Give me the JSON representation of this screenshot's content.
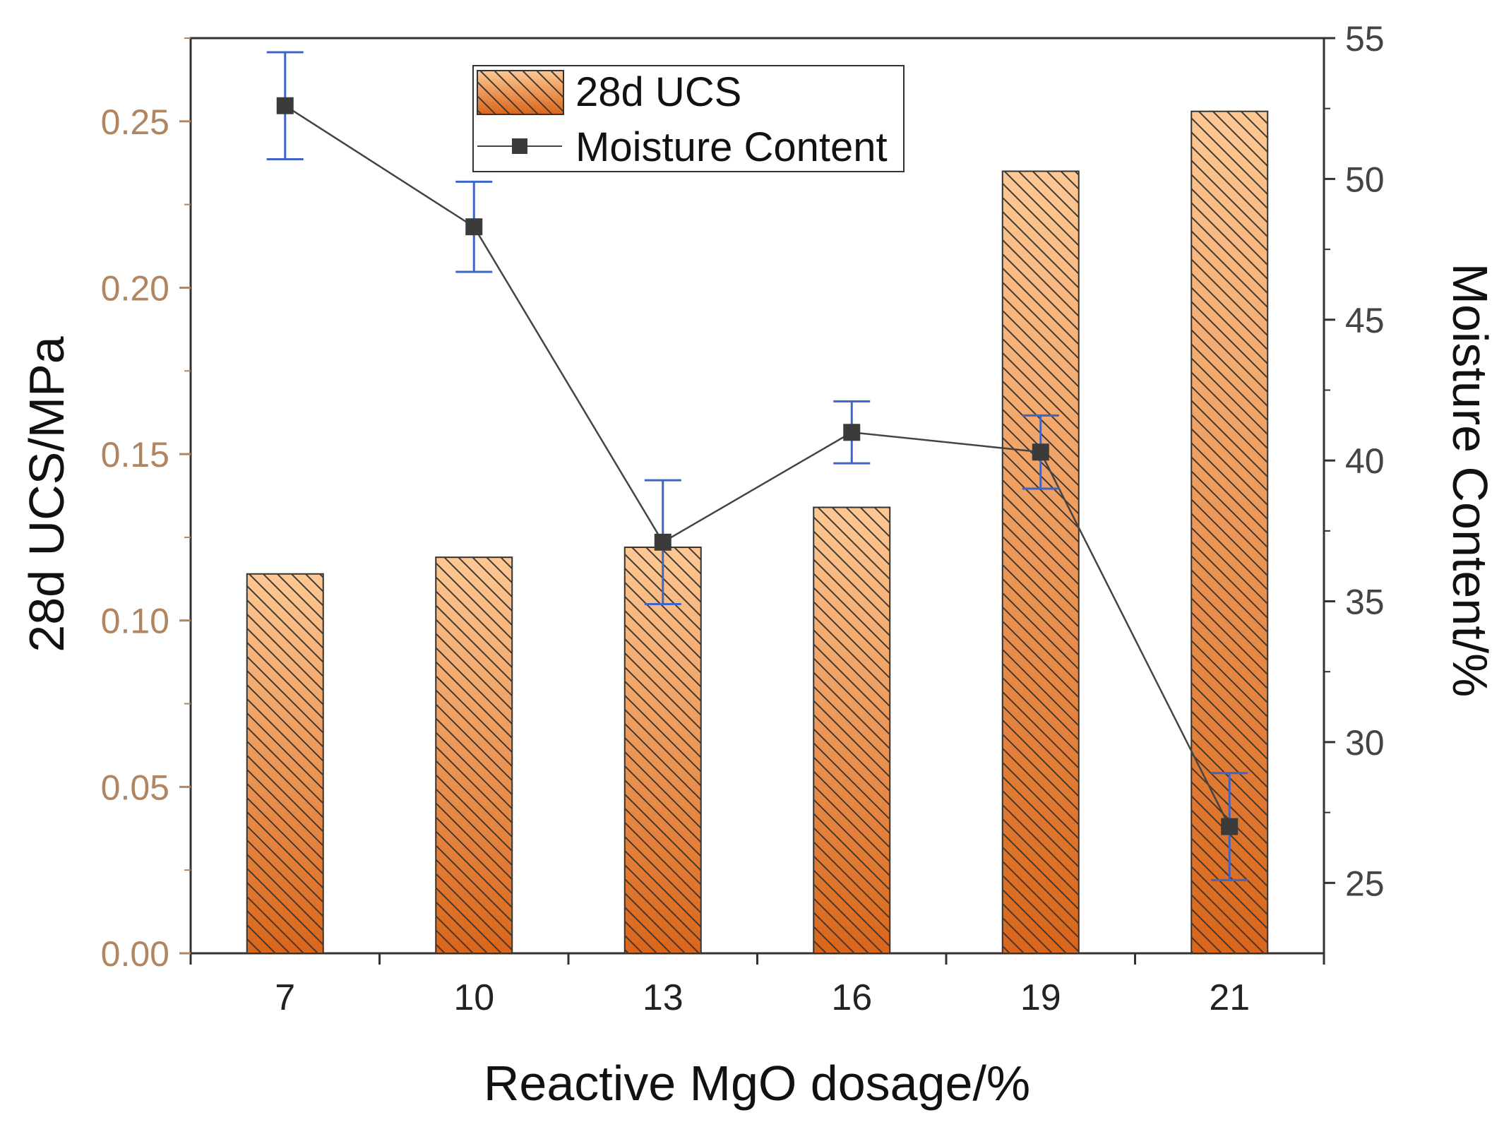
{
  "chart_data": {
    "type": "bar",
    "title": "",
    "xlabel": "Reactive MgO dosage/%",
    "ylabel": "28d UCS/MPa",
    "y2label": "Moisture Content/%",
    "categories": [
      "7",
      "10",
      "13",
      "16",
      "19",
      "21"
    ],
    "ylim": [
      0,
      0.275
    ],
    "y2lim": [
      22.5,
      55
    ],
    "yticks": [
      "0.00",
      "0.05",
      "0.10",
      "0.15",
      "0.20",
      "0.25"
    ],
    "y2ticks": [
      "25",
      "30",
      "35",
      "40",
      "45",
      "50",
      "55"
    ],
    "series": [
      {
        "name": "28d UCS",
        "type": "bar",
        "axis": "left",
        "values": [
          0.114,
          0.119,
          0.122,
          0.134,
          0.235,
          0.253
        ]
      },
      {
        "name": "Moisture Content",
        "type": "line",
        "axis": "right",
        "values": [
          52.6,
          48.3,
          37.1,
          41.0,
          40.3,
          27.0
        ],
        "error": [
          1.9,
          1.6,
          2.2,
          1.1,
          1.3,
          1.9
        ]
      }
    ],
    "legend": {
      "position": "top-center",
      "entries": [
        "28d UCS",
        "Moisture Content"
      ]
    }
  },
  "colors": {
    "bar_top": "#fdc894",
    "bar_bottom": "#d9661a",
    "hatch": "#3a3a3a",
    "line": "#444444",
    "marker": "#3b3b3b",
    "error_bar": "#3f66c6",
    "left_axis_text": "#b08560",
    "right_axis_text": "#444444",
    "axis": "#333333"
  }
}
